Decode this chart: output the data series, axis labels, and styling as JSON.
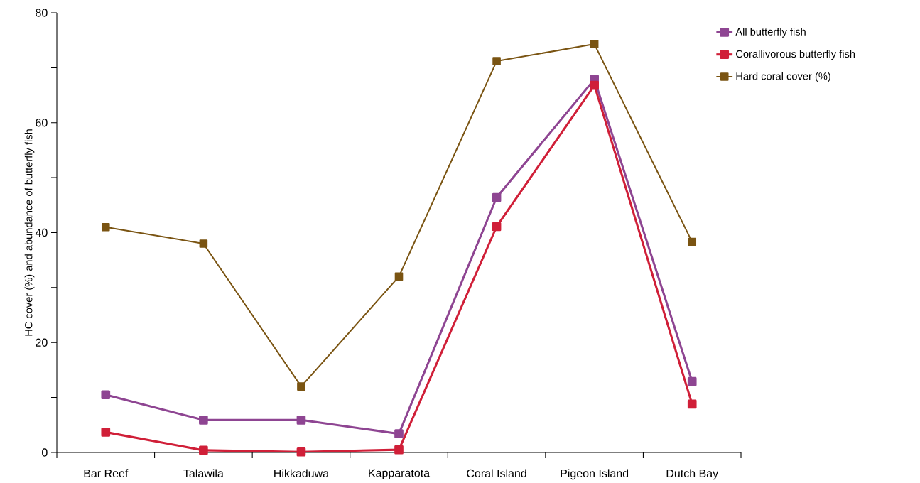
{
  "chart_data": {
    "type": "line",
    "ylabel": "HC cover (%) and abundance of butterfly fish",
    "categories": [
      "Bar Reef",
      "Talawila",
      "Hikkaduwa",
      "Kapparatota",
      "Coral Island",
      "Pigeon Island",
      "Dutch Bay"
    ],
    "series": [
      {
        "name": "All butterfly fish",
        "color": "#8e4592",
        "values": [
          10.5,
          5.9,
          5.9,
          3.4,
          46.4,
          67.9,
          12.9
        ]
      },
      {
        "name": "Corallivorous butterfly fish",
        "color": "#d01f38",
        "values": [
          3.7,
          0.4,
          0.1,
          0.5,
          41.1,
          66.8,
          8.8
        ]
      },
      {
        "name": "Hard coral cover (%)",
        "color": "#7a5412",
        "values": [
          41,
          38,
          12,
          32,
          71.2,
          74.3,
          38.3
        ]
      }
    ],
    "ylim": [
      0,
      80
    ],
    "yticks": [
      0,
      20,
      40,
      60,
      80
    ],
    "grid": false,
    "legend": "top right",
    "marker": "square",
    "line_style": "solid"
  }
}
